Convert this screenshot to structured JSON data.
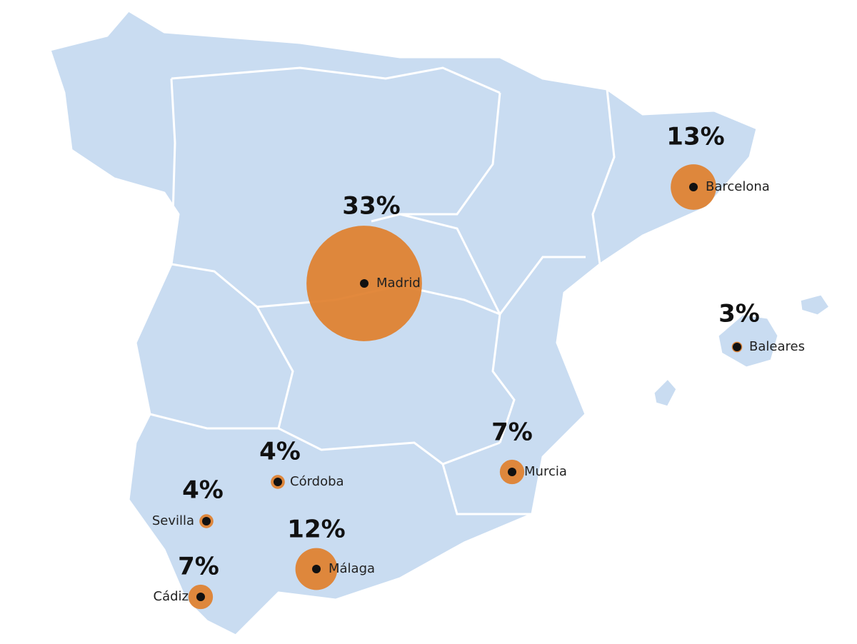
{
  "chart_data": {
    "type": "bubble-map",
    "categories": [
      "Madrid",
      "Barcelona",
      "Baleares",
      "Murcia",
      "Córdoba",
      "Sevilla",
      "Málaga",
      "Cádiz"
    ],
    "values": [
      33,
      13,
      3,
      7,
      4,
      4,
      12,
      7
    ],
    "value_labels": [
      "33%",
      "13%",
      "3%",
      "7%",
      "4%",
      "4%",
      "12%",
      "7%"
    ],
    "color": "#e07f2c"
  }
}
